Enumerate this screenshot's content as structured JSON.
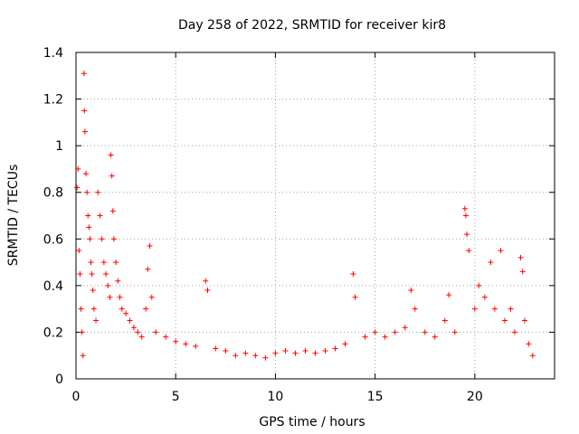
{
  "chart_data": {
    "type": "scatter",
    "title": "Day 258 of 2022, SRMTID for receiver kir8",
    "xlabel": "GPS time / hours",
    "ylabel": "SRMTID / TECUs",
    "xlim": [
      0,
      24
    ],
    "ylim": [
      0,
      1.4
    ],
    "x_ticks": [
      0,
      5,
      10,
      15,
      20
    ],
    "x_tick_labels": [
      "0",
      "5",
      "10",
      "15",
      "20"
    ],
    "y_ticks": [
      0,
      0.2,
      0.4,
      0.6,
      0.8,
      1.0,
      1.2,
      1.4
    ],
    "y_tick_labels": [
      "0",
      "0.2",
      "0.4",
      "0.6",
      "0.8",
      "1",
      "1.2",
      "1.4"
    ],
    "grid": true,
    "marker": "+",
    "series": [
      {
        "name": "SRMTID",
        "color": "#ff0000",
        "points": [
          [
            0.05,
            0.82
          ],
          [
            0.1,
            0.9
          ],
          [
            0.15,
            0.55
          ],
          [
            0.2,
            0.45
          ],
          [
            0.25,
            0.3
          ],
          [
            0.3,
            0.2
          ],
          [
            0.35,
            0.1
          ],
          [
            0.4,
            1.31
          ],
          [
            0.42,
            1.15
          ],
          [
            0.45,
            1.06
          ],
          [
            0.5,
            0.88
          ],
          [
            0.55,
            0.8
          ],
          [
            0.6,
            0.7
          ],
          [
            0.65,
            0.65
          ],
          [
            0.7,
            0.6
          ],
          [
            0.75,
            0.5
          ],
          [
            0.8,
            0.45
          ],
          [
            0.85,
            0.38
          ],
          [
            0.9,
            0.3
          ],
          [
            1.0,
            0.25
          ],
          [
            1.1,
            0.8
          ],
          [
            1.2,
            0.7
          ],
          [
            1.3,
            0.6
          ],
          [
            1.4,
            0.5
          ],
          [
            1.5,
            0.45
          ],
          [
            1.6,
            0.4
          ],
          [
            1.7,
            0.35
          ],
          [
            1.75,
            0.96
          ],
          [
            1.8,
            0.87
          ],
          [
            1.85,
            0.72
          ],
          [
            1.9,
            0.6
          ],
          [
            2.0,
            0.5
          ],
          [
            2.1,
            0.42
          ],
          [
            2.2,
            0.35
          ],
          [
            2.3,
            0.3
          ],
          [
            2.5,
            0.28
          ],
          [
            2.7,
            0.25
          ],
          [
            2.9,
            0.22
          ],
          [
            3.1,
            0.2
          ],
          [
            3.3,
            0.18
          ],
          [
            3.5,
            0.3
          ],
          [
            3.6,
            0.47
          ],
          [
            3.7,
            0.57
          ],
          [
            3.8,
            0.35
          ],
          [
            4.0,
            0.2
          ],
          [
            4.5,
            0.18
          ],
          [
            5.0,
            0.16
          ],
          [
            5.5,
            0.15
          ],
          [
            6.0,
            0.14
          ],
          [
            6.5,
            0.42
          ],
          [
            6.6,
            0.38
          ],
          [
            7.0,
            0.13
          ],
          [
            7.5,
            0.12
          ],
          [
            8.0,
            0.1
          ],
          [
            8.5,
            0.11
          ],
          [
            9.0,
            0.1
          ],
          [
            9.5,
            0.09
          ],
          [
            10.0,
            0.11
          ],
          [
            10.5,
            0.12
          ],
          [
            11.0,
            0.11
          ],
          [
            11.5,
            0.12
          ],
          [
            12.0,
            0.11
          ],
          [
            12.5,
            0.12
          ],
          [
            13.0,
            0.13
          ],
          [
            13.5,
            0.15
          ],
          [
            13.9,
            0.45
          ],
          [
            14.0,
            0.35
          ],
          [
            14.5,
            0.18
          ],
          [
            15.0,
            0.2
          ],
          [
            15.5,
            0.18
          ],
          [
            16.0,
            0.2
          ],
          [
            16.5,
            0.22
          ],
          [
            16.8,
            0.38
          ],
          [
            17.0,
            0.3
          ],
          [
            17.5,
            0.2
          ],
          [
            18.0,
            0.18
          ],
          [
            18.5,
            0.25
          ],
          [
            18.7,
            0.36
          ],
          [
            19.0,
            0.2
          ],
          [
            19.5,
            0.73
          ],
          [
            19.55,
            0.7
          ],
          [
            19.6,
            0.62
          ],
          [
            19.7,
            0.55
          ],
          [
            20.0,
            0.3
          ],
          [
            20.2,
            0.4
          ],
          [
            20.5,
            0.35
          ],
          [
            20.8,
            0.5
          ],
          [
            21.0,
            0.3
          ],
          [
            21.3,
            0.55
          ],
          [
            21.5,
            0.25
          ],
          [
            21.8,
            0.3
          ],
          [
            22.0,
            0.2
          ],
          [
            22.3,
            0.52
          ],
          [
            22.4,
            0.46
          ],
          [
            22.5,
            0.25
          ],
          [
            22.7,
            0.15
          ],
          [
            22.9,
            0.1
          ]
        ]
      }
    ]
  }
}
